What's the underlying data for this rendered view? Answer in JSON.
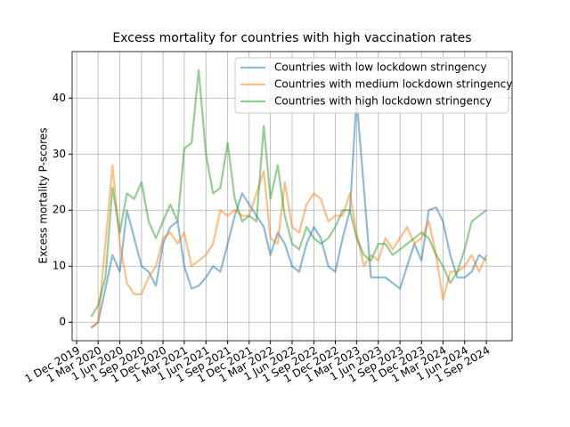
{
  "chart_data": {
    "type": "line",
    "title": "Excess mortality for countries with high vaccination rates",
    "ylabel": "Excess mortality P-scores",
    "x": [
      "2020-02-01",
      "2020-03-01",
      "2020-04-01",
      "2020-05-01",
      "2020-06-01",
      "2020-07-01",
      "2020-08-01",
      "2020-09-01",
      "2020-10-01",
      "2020-11-01",
      "2020-12-01",
      "2021-01-01",
      "2021-02-01",
      "2021-03-01",
      "2021-04-01",
      "2021-05-01",
      "2021-06-01",
      "2021-07-01",
      "2021-08-01",
      "2021-09-01",
      "2021-10-01",
      "2021-11-01",
      "2021-12-01",
      "2022-01-01",
      "2022-02-01",
      "2022-03-01",
      "2022-04-01",
      "2022-05-01",
      "2022-06-01",
      "2022-07-01",
      "2022-08-01",
      "2022-09-01",
      "2022-10-01",
      "2022-11-01",
      "2022-12-01",
      "2023-01-01",
      "2023-02-01",
      "2023-03-01",
      "2023-04-01",
      "2023-05-01",
      "2023-06-01",
      "2023-07-01",
      "2023-08-01",
      "2023-09-01",
      "2023-10-01",
      "2023-11-01",
      "2023-12-01",
      "2024-01-01",
      "2024-02-01",
      "2024-03-01",
      "2024-04-01",
      "2024-05-01",
      "2024-06-01",
      "2024-07-01",
      "2024-08-01",
      "2024-09-01"
    ],
    "series": [
      {
        "name": "Countries with low lockdown stringency",
        "color": "#1f77b4",
        "values": [
          -1,
          0,
          6,
          12,
          9,
          20,
          15,
          10,
          9,
          6.5,
          14,
          17,
          18,
          10,
          6,
          6.5,
          8,
          10,
          9,
          14,
          19,
          23,
          21,
          19,
          17,
          12,
          16,
          14,
          10,
          9,
          14,
          17,
          15,
          10,
          9,
          15,
          20,
          40,
          24,
          8,
          8,
          8,
          7,
          6,
          10,
          14,
          11,
          20,
          20.5,
          18,
          12,
          8,
          8,
          9,
          12,
          11
        ]
      },
      {
        "name": "Countries with medium lockdown stringency",
        "color": "#ff7f0e",
        "values": [
          -1,
          0,
          14,
          28,
          14,
          7,
          5,
          5,
          8,
          10,
          15,
          16,
          14,
          16,
          10,
          11,
          12,
          14,
          20,
          19,
          20,
          19,
          19,
          23,
          27,
          15,
          14,
          25,
          17,
          16,
          21,
          23,
          22,
          18,
          19,
          19,
          23,
          16,
          10,
          12,
          11,
          15,
          13,
          15,
          17,
          14,
          15,
          18,
          12,
          4,
          9,
          9,
          10,
          12,
          9,
          12
        ]
      },
      {
        "name": "Countries with high lockdown stringency",
        "color": "#2ca02c",
        "values": [
          1,
          3,
          8,
          24,
          16,
          23,
          22,
          25,
          18,
          15,
          18,
          21,
          18,
          31,
          32,
          45,
          30,
          23,
          24,
          32,
          22,
          18,
          19,
          18,
          35,
          22,
          28,
          19,
          14,
          13,
          17,
          15,
          14,
          15,
          17,
          20,
          20,
          15,
          12,
          11,
          14,
          14,
          12,
          13,
          14,
          15,
          16,
          15,
          12,
          10,
          7,
          9,
          13,
          18,
          19,
          20
        ]
      }
    ],
    "xlim": [
      "2019-11-12",
      "2024-12-19"
    ],
    "xticks": [
      {
        "value": "2019-12-01",
        "label": "1 Dec 2019"
      },
      {
        "value": "2020-03-01",
        "label": "1 Mar 2020"
      },
      {
        "value": "2020-06-01",
        "label": "1 Jun 2020"
      },
      {
        "value": "2020-09-01",
        "label": "1 Sep 2020"
      },
      {
        "value": "2020-12-01",
        "label": "1 Dec 2020"
      },
      {
        "value": "2021-03-01",
        "label": "1 Mar 2021"
      },
      {
        "value": "2021-06-01",
        "label": "1 Jun 2021"
      },
      {
        "value": "2021-09-01",
        "label": "1 Sep 2021"
      },
      {
        "value": "2021-12-01",
        "label": "1 Dec 2021"
      },
      {
        "value": "2022-03-01",
        "label": "1 Mar 2022"
      },
      {
        "value": "2022-06-01",
        "label": "1 Jun 2022"
      },
      {
        "value": "2022-09-01",
        "label": "1 Sep 2022"
      },
      {
        "value": "2022-12-01",
        "label": "1 Dec 2022"
      },
      {
        "value": "2023-03-01",
        "label": "1 Mar 2023"
      },
      {
        "value": "2023-06-01",
        "label": "1 Jun 2023"
      },
      {
        "value": "2023-09-01",
        "label": "1 Sep 2023"
      },
      {
        "value": "2023-12-01",
        "label": "1 Dec 2023"
      },
      {
        "value": "2024-03-01",
        "label": "1 Mar 2024"
      },
      {
        "value": "2024-06-01",
        "label": "1 Jun 2024"
      },
      {
        "value": "2024-09-01",
        "label": "1 Sep 2024"
      }
    ],
    "ylim": [
      -3.3,
      48.3
    ],
    "yticks": [
      0,
      10,
      20,
      30,
      40
    ],
    "grid": true,
    "legend": "upper right"
  }
}
